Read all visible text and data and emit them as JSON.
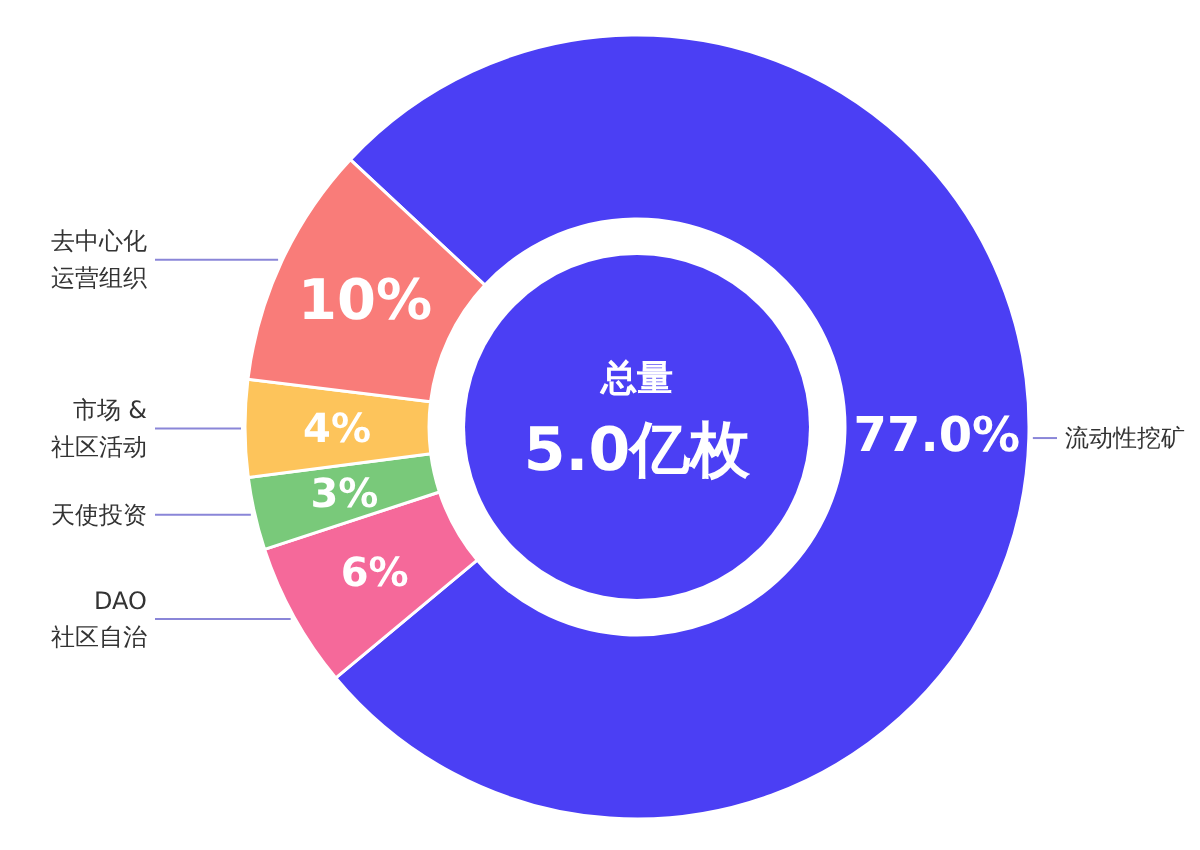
{
  "chart_data": {
    "type": "donut",
    "categories": [
      "流动性挖矿",
      "DAO\n社区自治",
      "天使投资",
      "市场 &\n社区活动",
      "去中心化运营组织"
    ],
    "values": [
      77.0,
      6,
      3,
      4,
      10
    ],
    "value_labels": [
      "77.0%",
      "6%",
      "3%",
      "4%",
      "10%"
    ],
    "colors": [
      "#4b3ff4",
      "#f5699a",
      "#79c97a",
      "#fdc45b",
      "#f97c79"
    ],
    "annotations": [
      "总量",
      "5.0亿枚"
    ]
  }
}
